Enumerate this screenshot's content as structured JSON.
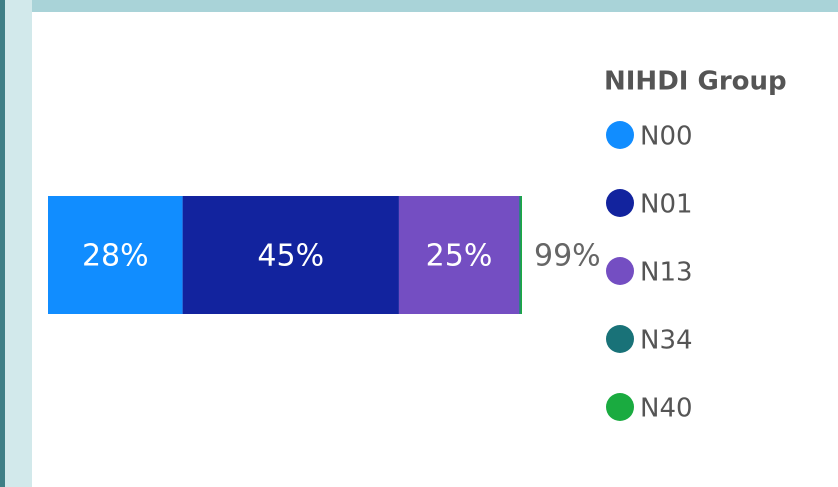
{
  "chart_data": {
    "type": "stacked-bar",
    "legend_title": "NIHDI Group",
    "series": [
      {
        "name": "N00",
        "color": "#118dff",
        "values": [
          28
        ],
        "value_labels": [
          "28%"
        ]
      },
      {
        "name": "N01",
        "color": "#12239e",
        "values": [
          45
        ],
        "value_labels": [
          "45%"
        ]
      },
      {
        "name": "N13",
        "color": "#744ec2",
        "values": [
          25
        ],
        "value_labels": [
          "25%"
        ]
      },
      {
        "name": "N34",
        "color": "#197278",
        "values": [
          0.3
        ]
      },
      {
        "name": "N40",
        "color": "#1aab40",
        "values": [
          0.3
        ]
      }
    ],
    "total": 99,
    "total_label": "99%"
  }
}
